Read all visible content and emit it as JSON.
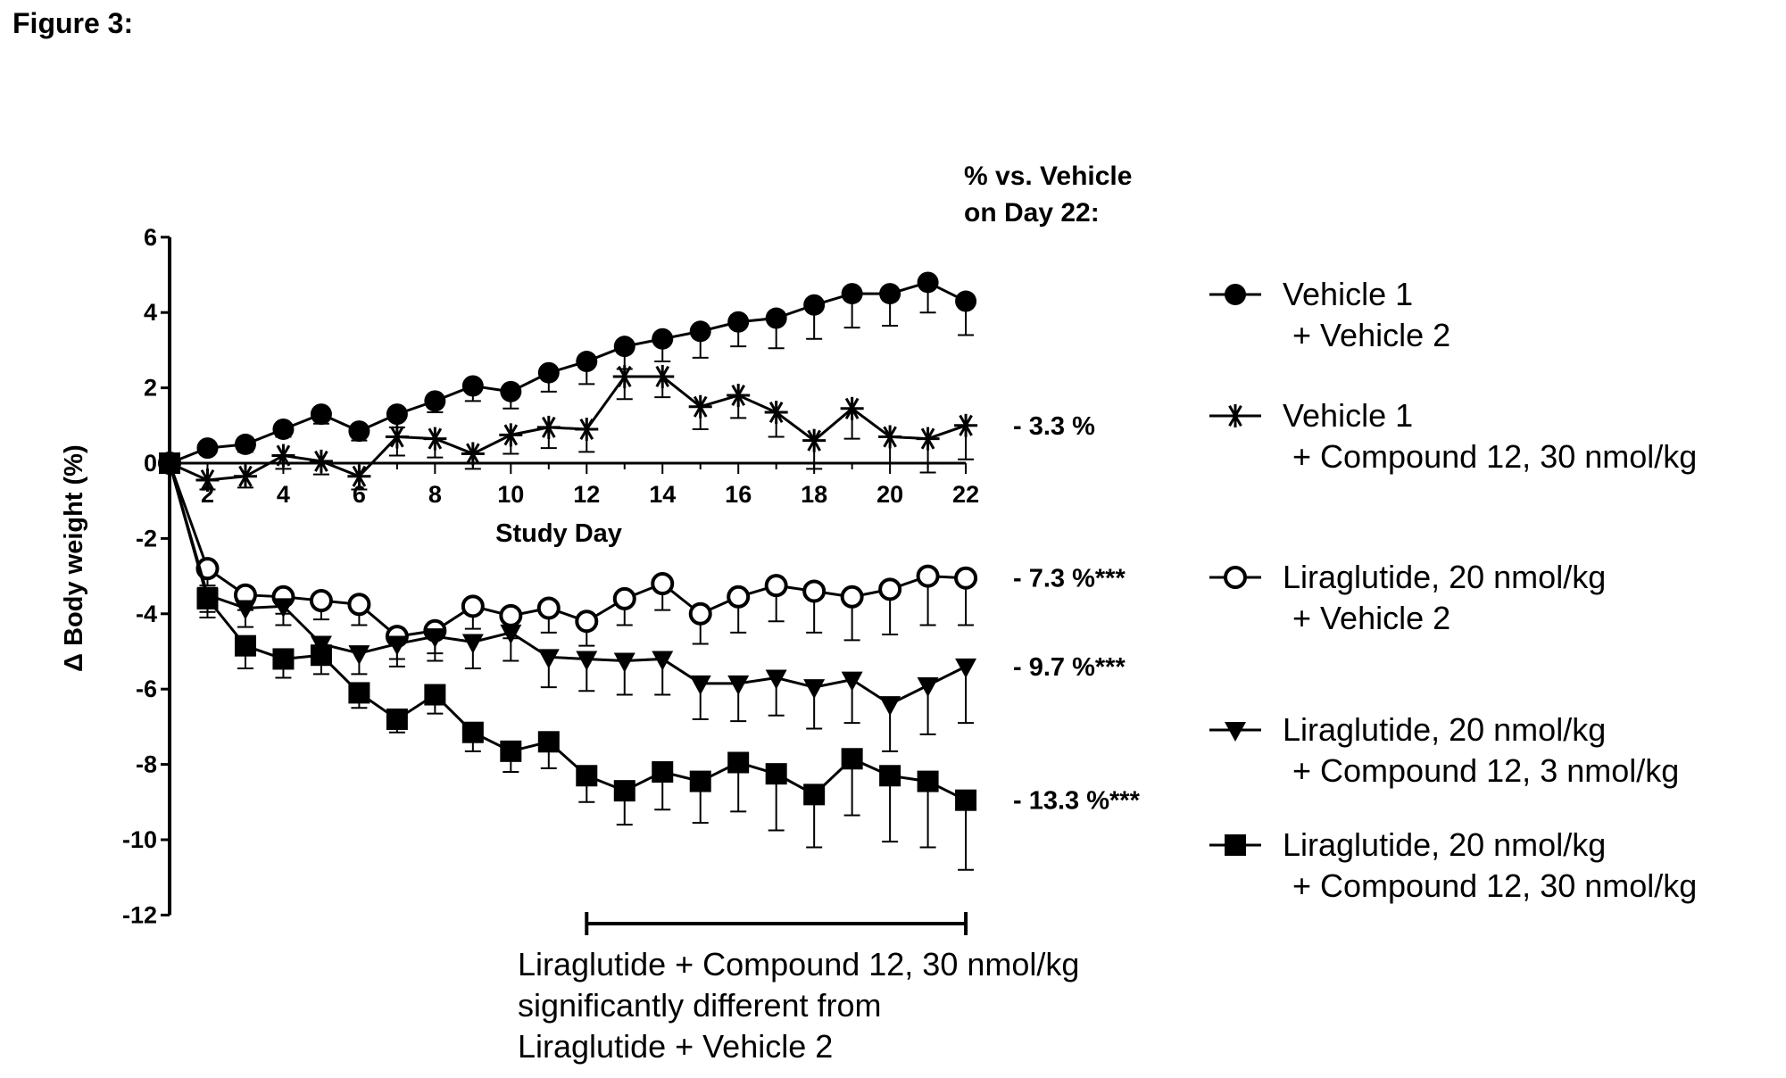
{
  "figure_label": "Figure 3:",
  "pct_header": [
    "% vs. Vehicle",
    "on Day 22:"
  ],
  "significance_note": [
    "Liraglutide + Compound 12, 30 nmol/kg",
    "significantly different from",
    "Liraglutide + Vehicle 2"
  ],
  "chart_data": {
    "type": "line",
    "title": "",
    "xlabel": "Study Day",
    "ylabel": "Δ Body weight (%)",
    "xlim": [
      1,
      22
    ],
    "ylim": [
      -12,
      6
    ],
    "xticks": [
      2,
      4,
      6,
      8,
      10,
      12,
      14,
      16,
      18,
      20,
      22
    ],
    "yticks": [
      6,
      4,
      2,
      0,
      -2,
      -4,
      -6,
      -8,
      -10,
      -12
    ],
    "x": [
      1,
      2,
      3,
      4,
      5,
      6,
      7,
      8,
      9,
      10,
      11,
      12,
      13,
      14,
      15,
      16,
      17,
      18,
      19,
      20,
      21,
      22
    ],
    "significance_bar": {
      "from_day": 12,
      "to_day": 22
    },
    "series": [
      {
        "name_lines": [
          "Vehicle 1",
          "+ Vehicle 2"
        ],
        "marker": "filled-circle",
        "end_label": "",
        "values": [
          0,
          0.4,
          0.5,
          0.9,
          1.3,
          0.85,
          1.3,
          1.65,
          2.05,
          1.9,
          2.4,
          2.7,
          3.1,
          3.3,
          3.5,
          3.75,
          3.85,
          4.2,
          4.5,
          4.5,
          4.8,
          4.3
        ],
        "errors": [
          0,
          0.15,
          0.2,
          0.2,
          0.25,
          0.25,
          0.35,
          0.3,
          0.4,
          0.45,
          0.5,
          0.6,
          0.6,
          0.6,
          0.7,
          0.65,
          0.8,
          0.9,
          0.9,
          0.85,
          0.8,
          0.9
        ]
      },
      {
        "name_lines": [
          "Vehicle 1",
          "+ Compound 12, 30 nmol/kg"
        ],
        "marker": "asterisk",
        "end_label": "- 3.3 %",
        "values": [
          0,
          -0.45,
          -0.35,
          0.2,
          0.05,
          -0.35,
          0.7,
          0.65,
          0.25,
          0.75,
          0.95,
          0.9,
          2.3,
          2.3,
          1.5,
          1.8,
          1.35,
          0.6,
          1.45,
          0.7,
          0.65,
          1.0
        ],
        "errors": [
          0,
          0.25,
          0.3,
          0.35,
          0.35,
          0.35,
          0.5,
          0.5,
          0.4,
          0.5,
          0.55,
          0.6,
          0.6,
          0.55,
          0.6,
          0.6,
          0.65,
          0.75,
          0.8,
          0.7,
          0.9,
          0.9
        ]
      },
      {
        "name_lines": [
          "Liraglutide, 20 nmol/kg",
          "+ Vehicle 2"
        ],
        "marker": "open-circle",
        "end_label": "- 7.3 %***",
        "values": [
          0,
          -2.8,
          -3.5,
          -3.55,
          -3.65,
          -3.75,
          -4.6,
          -4.45,
          -3.8,
          -4.05,
          -3.85,
          -4.2,
          -3.6,
          -3.2,
          -4.0,
          -3.55,
          -3.25,
          -3.4,
          -3.55,
          -3.35,
          -3.0,
          -3.05
        ],
        "errors": [
          0,
          0.45,
          0.4,
          0.45,
          0.5,
          0.55,
          0.6,
          0.6,
          0.6,
          0.6,
          0.65,
          0.65,
          0.7,
          0.7,
          0.8,
          0.95,
          0.95,
          1.1,
          1.15,
          1.2,
          1.3,
          1.25
        ]
      },
      {
        "name_lines": [
          "Liraglutide, 20 nmol/kg",
          "+ Compound 12, 3 nmol/kg"
        ],
        "marker": "filled-triangle-down",
        "end_label": "- 9.7 %***",
        "values": [
          0,
          -3.5,
          -3.85,
          -3.8,
          -4.8,
          -5.05,
          -4.8,
          -4.6,
          -4.75,
          -4.5,
          -5.15,
          -5.2,
          -5.25,
          -5.2,
          -5.85,
          -5.85,
          -5.7,
          -5.95,
          -5.75,
          -6.4,
          -5.9,
          -5.4
        ],
        "errors": [
          0,
          0.45,
          0.5,
          0.5,
          0.55,
          0.55,
          0.6,
          0.65,
          0.7,
          0.75,
          0.8,
          0.85,
          0.9,
          0.95,
          0.95,
          1.0,
          1.0,
          1.1,
          1.15,
          1.25,
          1.3,
          1.5
        ]
      },
      {
        "name_lines": [
          "Liraglutide, 20 nmol/kg",
          "+ Compound 12, 30 nmol/kg"
        ],
        "marker": "filled-square",
        "end_label": "- 13.3 %***",
        "values": [
          0,
          -3.6,
          -4.85,
          -5.2,
          -5.1,
          -6.1,
          -6.8,
          -6.15,
          -7.15,
          -7.65,
          -7.4,
          -8.3,
          -8.7,
          -8.2,
          -8.45,
          -7.95,
          -8.25,
          -8.8,
          -7.85,
          -8.3,
          -8.45,
          -8.95
        ],
        "errors": [
          0,
          0.5,
          0.6,
          0.5,
          0.5,
          0.4,
          0.35,
          0.5,
          0.5,
          0.55,
          0.7,
          0.7,
          0.9,
          1.0,
          1.1,
          1.3,
          1.5,
          1.4,
          1.5,
          1.75,
          1.75,
          1.85
        ]
      }
    ]
  }
}
